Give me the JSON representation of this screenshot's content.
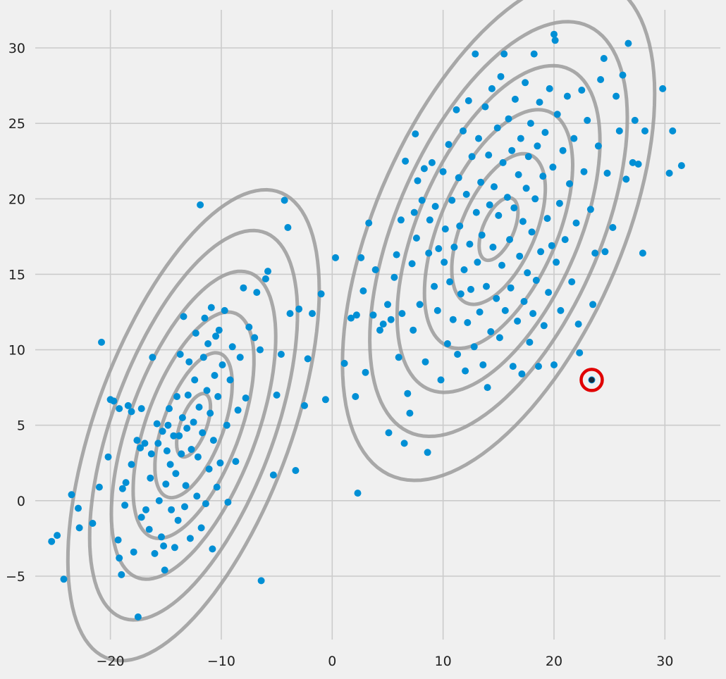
{
  "chart_data": {
    "type": "scatter",
    "title": "",
    "xlabel": "",
    "ylabel": "",
    "xlim": [
      -29,
      35
    ],
    "ylim": [
      -9.2,
      32.8
    ],
    "grid": true,
    "x_ticks": [
      {
        "value": -20,
        "label": "−20"
      },
      {
        "value": -10,
        "label": "−10"
      },
      {
        "value": 0,
        "label": "0"
      },
      {
        "value": 10,
        "label": "10"
      },
      {
        "value": 20,
        "label": "20"
      },
      {
        "value": 30,
        "label": "30"
      }
    ],
    "y_ticks": [
      {
        "value": -5,
        "label": "−5"
      },
      {
        "value": 0,
        "label": "0"
      },
      {
        "value": 5,
        "label": "5"
      },
      {
        "value": 10,
        "label": "10"
      },
      {
        "value": 15,
        "label": "15"
      },
      {
        "value": 20,
        "label": "20"
      },
      {
        "value": 25,
        "label": "25"
      },
      {
        "value": 30,
        "label": "30"
      }
    ],
    "colors": {
      "points": "#008fd5",
      "contours": "#9b9b9b",
      "grid": "#cbcbcb",
      "highlight": "#e00000"
    },
    "contours": [
      {
        "center": [
          -12.5,
          5.0
        ],
        "var_x": 19,
        "cov_xy": 15,
        "var_y": 36,
        "levels": [
          0.35,
          0.8,
          1.25,
          1.7,
          2.15,
          2.6
        ]
      },
      {
        "center": [
          15.0,
          18.0
        ],
        "var_x": 30,
        "cov_xy": 19,
        "var_y": 42,
        "levels": [
          0.32,
          0.77,
          1.22,
          1.67,
          2.12,
          2.57
        ]
      }
    ],
    "highlighted_point": {
      "x": 23.4,
      "y": 8.0
    },
    "points": [
      [
        -25.3,
        -2.7
      ],
      [
        -24.8,
        -2.3
      ],
      [
        -24.2,
        -5.2
      ],
      [
        -23.5,
        0.4
      ],
      [
        -22.9,
        -0.5
      ],
      [
        -22.8,
        -1.8
      ],
      [
        -21.6,
        -1.5
      ],
      [
        -21.0,
        0.9
      ],
      [
        -20.8,
        10.5
      ],
      [
        -20.2,
        2.9
      ],
      [
        -20.0,
        6.7
      ],
      [
        -19.7,
        6.6
      ],
      [
        -19.3,
        -2.6
      ],
      [
        -19.2,
        -3.8
      ],
      [
        -19.0,
        -4.9
      ],
      [
        -19.2,
        6.1
      ],
      [
        -18.9,
        0.8
      ],
      [
        -18.7,
        -0.3
      ],
      [
        -18.6,
        1.2
      ],
      [
        -18.4,
        6.3
      ],
      [
        -18.1,
        2.4
      ],
      [
        -17.9,
        -3.4
      ],
      [
        -18.1,
        5.9
      ],
      [
        -17.6,
        4.0
      ],
      [
        -17.5,
        -7.7
      ],
      [
        -17.2,
        -1.1
      ],
      [
        -17.3,
        3.5
      ],
      [
        -17.2,
        6.1
      ],
      [
        -16.9,
        3.8
      ],
      [
        -16.8,
        -0.6
      ],
      [
        -16.5,
        -1.9
      ],
      [
        -16.4,
        1.5
      ],
      [
        -16.3,
        3.1
      ],
      [
        -16.2,
        9.5
      ],
      [
        -16.0,
        -3.5
      ],
      [
        -15.8,
        5.1
      ],
      [
        -15.7,
        3.8
      ],
      [
        -15.6,
        0.0
      ],
      [
        -15.4,
        -2.4
      ],
      [
        -15.3,
        4.6
      ],
      [
        -15.2,
        -3.0
      ],
      [
        -15.1,
        -4.6
      ],
      [
        -15.0,
        1.1
      ],
      [
        -14.9,
        3.3
      ],
      [
        -14.8,
        5.0
      ],
      [
        -14.7,
        6.1
      ],
      [
        -14.6,
        2.4
      ],
      [
        -14.5,
        -0.6
      ],
      [
        -14.3,
        4.3
      ],
      [
        -14.2,
        -3.1
      ],
      [
        -14.1,
        1.8
      ],
      [
        -14.0,
        6.9
      ],
      [
        -13.9,
        -1.3
      ],
      [
        -13.8,
        4.3
      ],
      [
        -13.7,
        9.7
      ],
      [
        -13.6,
        3.1
      ],
      [
        -13.5,
        5.5
      ],
      [
        -13.4,
        12.2
      ],
      [
        -13.3,
        -0.4
      ],
      [
        -13.2,
        1.0
      ],
      [
        -13.1,
        4.8
      ],
      [
        -13.0,
        7.0
      ],
      [
        -12.9,
        9.2
      ],
      [
        -12.8,
        -2.5
      ],
      [
        -12.7,
        3.4
      ],
      [
        -12.5,
        5.2
      ],
      [
        -12.4,
        8.0
      ],
      [
        -12.3,
        11.1
      ],
      [
        -12.2,
        0.3
      ],
      [
        -12.1,
        2.9
      ],
      [
        -12.0,
        6.2
      ],
      [
        -11.9,
        19.6
      ],
      [
        -11.8,
        -1.8
      ],
      [
        -11.7,
        4.5
      ],
      [
        -11.6,
        9.5
      ],
      [
        -11.5,
        12.1
      ],
      [
        -11.4,
        -0.2
      ],
      [
        -11.3,
        7.3
      ],
      [
        -11.2,
        10.4
      ],
      [
        -11.1,
        2.1
      ],
      [
        -11.0,
        5.8
      ],
      [
        -10.9,
        12.8
      ],
      [
        -10.8,
        -3.2
      ],
      [
        -10.7,
        4.0
      ],
      [
        -10.6,
        8.3
      ],
      [
        -10.5,
        10.9
      ],
      [
        -10.4,
        0.9
      ],
      [
        -10.3,
        6.9
      ],
      [
        -10.2,
        11.3
      ],
      [
        -10.1,
        2.5
      ],
      [
        -9.9,
        9.0
      ],
      [
        -9.7,
        12.6
      ],
      [
        -9.5,
        5.0
      ],
      [
        -9.4,
        -0.1
      ],
      [
        -9.2,
        8.0
      ],
      [
        -9.0,
        10.2
      ],
      [
        -8.7,
        2.6
      ],
      [
        -8.5,
        6.0
      ],
      [
        -8.3,
        9.5
      ],
      [
        -8.0,
        14.1
      ],
      [
        -7.8,
        6.8
      ],
      [
        -7.5,
        11.5
      ],
      [
        -7.0,
        10.8
      ],
      [
        -6.8,
        13.8
      ],
      [
        -6.5,
        10.0
      ],
      [
        -6.4,
        -5.3
      ],
      [
        -6.0,
        14.7
      ],
      [
        -5.8,
        15.2
      ],
      [
        -5.3,
        1.7
      ],
      [
        -5.0,
        7.0
      ],
      [
        -4.6,
        9.7
      ],
      [
        -4.3,
        19.9
      ],
      [
        -4.0,
        18.1
      ],
      [
        -3.8,
        12.4
      ],
      [
        -3.3,
        2.0
      ],
      [
        -3.0,
        12.7
      ],
      [
        -2.5,
        6.3
      ],
      [
        -2.2,
        9.4
      ],
      [
        -1.8,
        12.4
      ],
      [
        -1.0,
        13.7
      ],
      [
        -0.6,
        6.7
      ],
      [
        0.3,
        16.1
      ],
      [
        1.1,
        9.1
      ],
      [
        1.7,
        12.1
      ],
      [
        2.1,
        6.9
      ],
      [
        2.2,
        12.3
      ],
      [
        2.3,
        0.5
      ],
      [
        2.6,
        16.1
      ],
      [
        2.8,
        13.9
      ],
      [
        3.0,
        8.5
      ],
      [
        3.3,
        18.4
      ],
      [
        3.7,
        12.3
      ],
      [
        3.9,
        15.3
      ],
      [
        4.3,
        11.3
      ],
      [
        4.6,
        11.7
      ],
      [
        5.0,
        13.0
      ],
      [
        5.1,
        4.5
      ],
      [
        5.3,
        12.0
      ],
      [
        5.6,
        14.8
      ],
      [
        5.8,
        16.3
      ],
      [
        6.0,
        9.5
      ],
      [
        6.2,
        18.6
      ],
      [
        6.3,
        12.4
      ],
      [
        6.5,
        3.8
      ],
      [
        6.6,
        22.5
      ],
      [
        6.8,
        7.1
      ],
      [
        7.0,
        5.8
      ],
      [
        7.2,
        15.7
      ],
      [
        7.3,
        11.3
      ],
      [
        7.4,
        19.1
      ],
      [
        7.5,
        24.3
      ],
      [
        7.6,
        17.4
      ],
      [
        7.7,
        21.2
      ],
      [
        7.9,
        13.0
      ],
      [
        8.1,
        19.9
      ],
      [
        8.3,
        22.0
      ],
      [
        8.4,
        9.2
      ],
      [
        8.6,
        3.2
      ],
      [
        8.7,
        16.4
      ],
      [
        8.8,
        18.6
      ],
      [
        9.0,
        22.4
      ],
      [
        9.2,
        14.2
      ],
      [
        9.3,
        19.5
      ],
      [
        9.5,
        12.6
      ],
      [
        9.6,
        16.7
      ],
      [
        9.8,
        8.0
      ],
      [
        10.0,
        21.8
      ],
      [
        10.1,
        15.8
      ],
      [
        10.2,
        18.0
      ],
      [
        10.4,
        10.4
      ],
      [
        10.5,
        23.6
      ],
      [
        10.6,
        14.5
      ],
      [
        10.8,
        19.9
      ],
      [
        10.9,
        12.0
      ],
      [
        11.0,
        16.8
      ],
      [
        11.2,
        25.9
      ],
      [
        11.3,
        9.7
      ],
      [
        11.4,
        21.4
      ],
      [
        11.5,
        18.2
      ],
      [
        11.6,
        13.7
      ],
      [
        11.8,
        24.5
      ],
      [
        11.9,
        15.3
      ],
      [
        12.0,
        8.6
      ],
      [
        12.1,
        20.3
      ],
      [
        12.2,
        11.8
      ],
      [
        12.3,
        26.5
      ],
      [
        12.4,
        17.0
      ],
      [
        12.5,
        14.0
      ],
      [
        12.6,
        22.8
      ],
      [
        12.8,
        10.2
      ],
      [
        12.9,
        29.6
      ],
      [
        13.0,
        19.1
      ],
      [
        13.1,
        15.8
      ],
      [
        13.2,
        24.0
      ],
      [
        13.3,
        12.5
      ],
      [
        13.4,
        21.1
      ],
      [
        13.5,
        17.6
      ],
      [
        13.6,
        9.0
      ],
      [
        13.8,
        26.1
      ],
      [
        13.9,
        14.2
      ],
      [
        14.0,
        7.5
      ],
      [
        14.1,
        22.9
      ],
      [
        14.2,
        19.6
      ],
      [
        14.3,
        11.2
      ],
      [
        14.4,
        27.3
      ],
      [
        14.5,
        16.8
      ],
      [
        14.6,
        20.8
      ],
      [
        14.8,
        13.4
      ],
      [
        14.9,
        24.7
      ],
      [
        15.0,
        18.9
      ],
      [
        15.1,
        10.8
      ],
      [
        15.2,
        28.1
      ],
      [
        15.3,
        15.6
      ],
      [
        15.4,
        22.4
      ],
      [
        15.5,
        29.6
      ],
      [
        15.6,
        12.6
      ],
      [
        15.8,
        20.1
      ],
      [
        15.9,
        25.3
      ],
      [
        16.0,
        17.3
      ],
      [
        16.1,
        14.1
      ],
      [
        16.2,
        23.2
      ],
      [
        16.3,
        8.9
      ],
      [
        16.4,
        19.4
      ],
      [
        16.5,
        26.6
      ],
      [
        16.7,
        11.9
      ],
      [
        16.8,
        21.6
      ],
      [
        16.9,
        16.2
      ],
      [
        17.0,
        24.0
      ],
      [
        17.1,
        8.4
      ],
      [
        17.2,
        18.5
      ],
      [
        17.3,
        13.2
      ],
      [
        17.4,
        27.7
      ],
      [
        17.5,
        20.7
      ],
      [
        17.6,
        15.1
      ],
      [
        17.7,
        22.8
      ],
      [
        17.8,
        10.5
      ],
      [
        17.9,
        25.0
      ],
      [
        18.0,
        17.8
      ],
      [
        18.1,
        12.4
      ],
      [
        18.2,
        29.6
      ],
      [
        18.3,
        20.0
      ],
      [
        18.4,
        14.6
      ],
      [
        18.5,
        23.5
      ],
      [
        18.6,
        8.9
      ],
      [
        18.7,
        26.4
      ],
      [
        18.8,
        16.5
      ],
      [
        19.0,
        21.5
      ],
      [
        19.1,
        11.6
      ],
      [
        19.2,
        24.4
      ],
      [
        19.4,
        18.7
      ],
      [
        19.5,
        13.8
      ],
      [
        19.6,
        27.3
      ],
      [
        19.8,
        16.9
      ],
      [
        19.9,
        22.1
      ],
      [
        20.0,
        9.0
      ],
      [
        20.0,
        30.9
      ],
      [
        20.1,
        30.5
      ],
      [
        20.2,
        15.8
      ],
      [
        20.3,
        25.6
      ],
      [
        20.5,
        19.7
      ],
      [
        20.6,
        12.6
      ],
      [
        20.8,
        23.2
      ],
      [
        21.0,
        17.3
      ],
      [
        21.2,
        26.8
      ],
      [
        21.4,
        21.0
      ],
      [
        21.6,
        14.5
      ],
      [
        21.8,
        24.0
      ],
      [
        22.0,
        18.4
      ],
      [
        22.2,
        11.7
      ],
      [
        22.3,
        9.8
      ],
      [
        22.5,
        27.2
      ],
      [
        22.7,
        21.8
      ],
      [
        23.0,
        25.2
      ],
      [
        23.3,
        19.3
      ],
      [
        23.5,
        13.0
      ],
      [
        23.7,
        16.4
      ],
      [
        24.0,
        23.5
      ],
      [
        24.2,
        27.9
      ],
      [
        24.5,
        29.3
      ],
      [
        24.6,
        16.5
      ],
      [
        24.8,
        21.7
      ],
      [
        25.3,
        18.1
      ],
      [
        25.6,
        26.8
      ],
      [
        25.9,
        24.5
      ],
      [
        26.2,
        28.2
      ],
      [
        26.5,
        21.3
      ],
      [
        26.7,
        30.3
      ],
      [
        27.1,
        22.4
      ],
      [
        27.3,
        25.2
      ],
      [
        27.6,
        22.3
      ],
      [
        28.0,
        16.4
      ],
      [
        28.2,
        24.5
      ],
      [
        29.8,
        27.3
      ],
      [
        30.4,
        21.7
      ],
      [
        30.7,
        24.5
      ],
      [
        31.5,
        22.2
      ],
      [
        23.4,
        8.0
      ]
    ]
  }
}
